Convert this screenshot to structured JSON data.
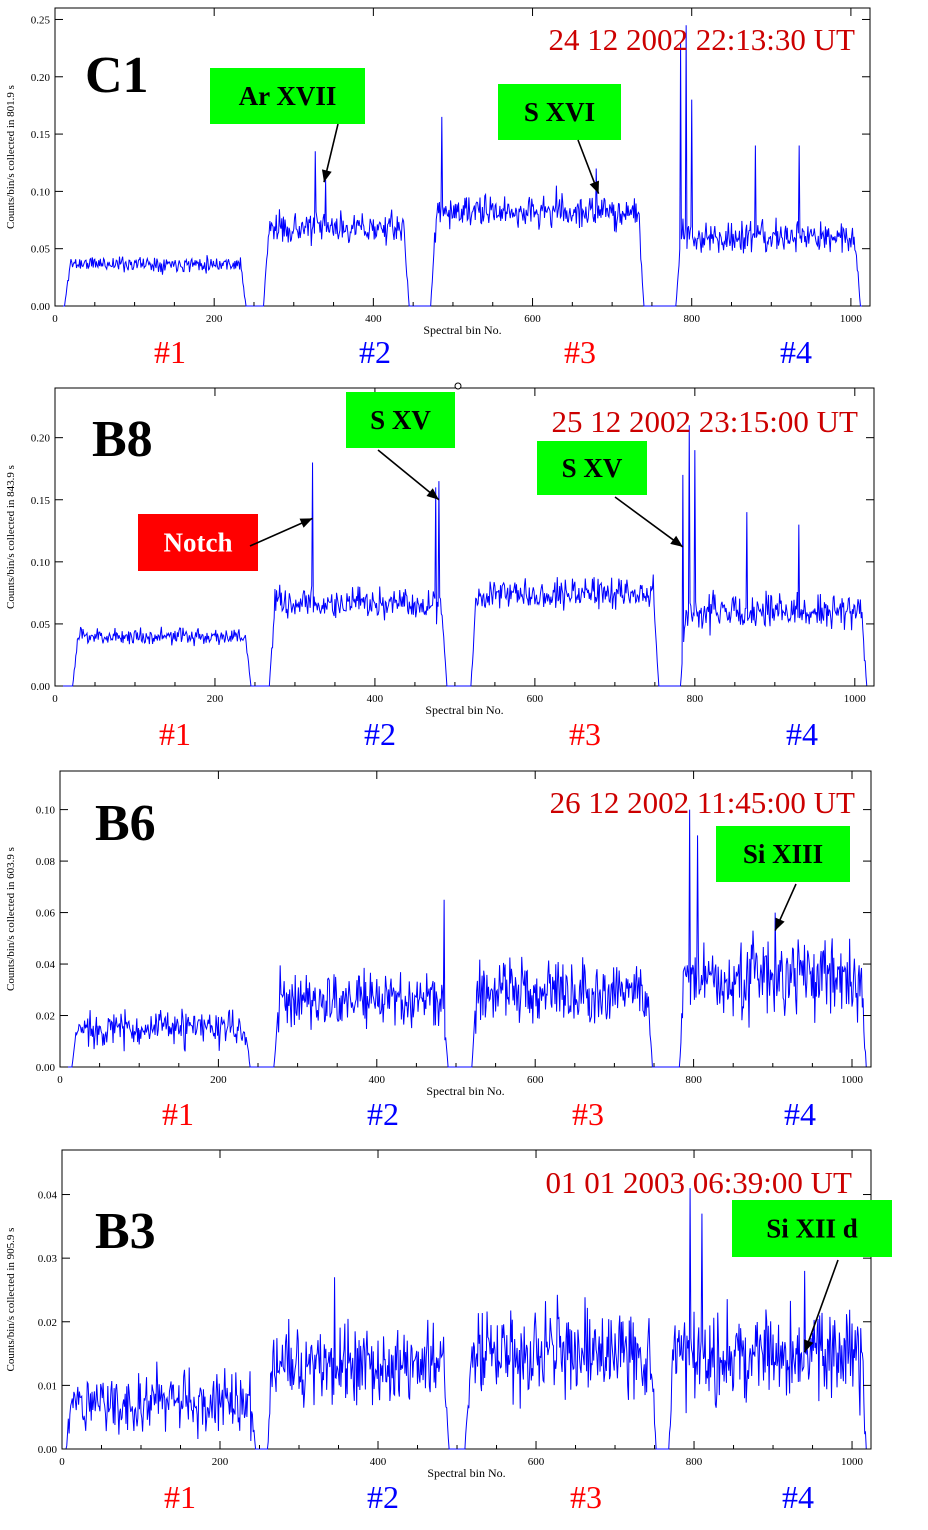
{
  "figure_colors": {
    "trace": "#0000ff",
    "axis": "#000000",
    "date": "#cc0000",
    "label_box_green": "#00ff00",
    "label_box_red": "#ff0000",
    "sector_odd": "#ff0000",
    "sector_even": "#0000ff"
  },
  "chart_data": [
    {
      "type": "line",
      "panel_label": "C1",
      "timestamp": "24 12 2002   22:13:30 UT",
      "xlabel": "Spectral bin No.",
      "ylabel": "Counts/bin/s collected in   801.9 s",
      "xlim": [
        0,
        1024
      ],
      "ylim": [
        0,
        0.26
      ],
      "xticks": [
        "0",
        "200",
        "400",
        "600",
        "800",
        "1000"
      ],
      "yticks": [
        "0.00",
        "0.05",
        "0.10",
        "0.15",
        "0.20",
        "0.25"
      ],
      "ytick_values": [
        0,
        0.05,
        0.1,
        0.15,
        0.2,
        0.25
      ],
      "sectors": [
        "#1",
        "#2",
        "#3",
        "#4"
      ],
      "noise_seed": 11,
      "segments": [
        {
          "x": [
            12,
            240
          ],
          "level": 0.037,
          "noise": 0.006
        },
        {
          "x": [
            262,
            445
          ],
          "level": 0.068,
          "noise": 0.011
        },
        {
          "x": [
            472,
            740
          ],
          "level": 0.082,
          "noise": 0.012
        },
        {
          "x": [
            780,
            1012
          ],
          "level": 0.06,
          "noise": 0.012
        }
      ],
      "peaks": [
        [
          327,
          0.135
        ],
        [
          340,
          0.11
        ],
        [
          486,
          0.165
        ],
        [
          630,
          0.105
        ],
        [
          680,
          0.12
        ],
        [
          786,
          0.23
        ],
        [
          793,
          0.245
        ],
        [
          800,
          0.18
        ],
        [
          880,
          0.14
        ],
        [
          935,
          0.14
        ]
      ],
      "annotations": [
        {
          "label": "Ar XVII",
          "color": "green",
          "target": [
            338,
            0.108
          ]
        },
        {
          "label": "S XVI",
          "color": "green",
          "target": [
            683,
            0.098
          ]
        }
      ]
    },
    {
      "type": "line",
      "panel_label": "B8",
      "timestamp": "25 12 2002   23:15:00 UT",
      "xlabel": "Spectral bin No.",
      "ylabel": "Counts/bin/s collected in   843.9 s",
      "xlim": [
        0,
        1024
      ],
      "ylim": [
        0,
        0.24
      ],
      "xticks": [
        "0",
        "200",
        "400",
        "600",
        "800",
        "1000"
      ],
      "yticks": [
        "0.00",
        "0.05",
        "0.10",
        "0.15",
        "0.20"
      ],
      "ytick_values": [
        0,
        0.05,
        0.1,
        0.15,
        0.2
      ],
      "sectors": [
        "#1",
        "#2",
        "#3",
        "#4"
      ],
      "noise_seed": 23,
      "segments": [
        {
          "x": [
            22,
            245
          ],
          "level": 0.04,
          "noise": 0.006
        },
        {
          "x": [
            268,
            490
          ],
          "level": 0.066,
          "noise": 0.011
        },
        {
          "x": [
            520,
            755
          ],
          "level": 0.075,
          "noise": 0.011
        },
        {
          "x": [
            782,
            1015
          ],
          "level": 0.06,
          "noise": 0.012
        }
      ],
      "peaks": [
        [
          322,
          0.18
        ],
        [
          476,
          0.16
        ],
        [
          480,
          0.165
        ],
        [
          785,
          0.17
        ],
        [
          793,
          0.21
        ],
        [
          800,
          0.19
        ],
        [
          865,
          0.14
        ],
        [
          930,
          0.13
        ]
      ],
      "annotations": [
        {
          "label": "S XV",
          "color": "green",
          "target": [
            480,
            0.15
          ]
        },
        {
          "label": "S XV",
          "color": "green",
          "target": [
            785,
            0.112
          ]
        },
        {
          "label": "Notch",
          "color": "red",
          "target": [
            322,
            0.135
          ]
        }
      ]
    },
    {
      "type": "line",
      "panel_label": "B6",
      "timestamp": "26 12 2002   11:45:00 UT",
      "xlabel": "Spectral bin No.",
      "ylabel": "Counts/bin/s collected in   603.9 s",
      "xlim": [
        0,
        1024
      ],
      "ylim": [
        0,
        0.115
      ],
      "xticks": [
        "0",
        "200",
        "400",
        "600",
        "800",
        "1000"
      ],
      "yticks": [
        "0.00",
        "0.02",
        "0.04",
        "0.06",
        "0.08",
        "0.10"
      ],
      "ytick_values": [
        0,
        0.02,
        0.04,
        0.06,
        0.08,
        0.1
      ],
      "sectors": [
        "#1",
        "#2",
        "#3",
        "#4"
      ],
      "noise_seed": 37,
      "segments": [
        {
          "x": [
            15,
            240
          ],
          "level": 0.015,
          "noise": 0.006
        },
        {
          "x": [
            270,
            490
          ],
          "level": 0.026,
          "noise": 0.01
        },
        {
          "x": [
            520,
            748
          ],
          "level": 0.03,
          "noise": 0.011
        },
        {
          "x": [
            782,
            1018
          ],
          "level": 0.035,
          "noise": 0.014
        }
      ],
      "peaks": [
        [
          485,
          0.065
        ],
        [
          795,
          0.1
        ],
        [
          805,
          0.09
        ],
        [
          903,
          0.06
        ]
      ],
      "annotations": [
        {
          "label": "Si XIII",
          "color": "green",
          "target": [
            903,
            0.053
          ]
        }
      ]
    },
    {
      "type": "line",
      "panel_label": "B3",
      "timestamp": "01 01 2003   06:39:00 UT",
      "xlabel": "Spectral bin No.",
      "ylabel": "Counts/bin/s collected in   905.9 s",
      "xlim": [
        0,
        1024
      ],
      "ylim": [
        0,
        0.047
      ],
      "xticks": [
        "0",
        "200",
        "400",
        "600",
        "800",
        "1000"
      ],
      "yticks": [
        "0.00",
        "0.01",
        "0.02",
        "0.03",
        "0.04"
      ],
      "ytick_values": [
        0,
        0.01,
        0.02,
        0.03,
        0.04
      ],
      "sectors": [
        "#1",
        "#2",
        "#3",
        "#4"
      ],
      "noise_seed": 51,
      "segments": [
        {
          "x": [
            5,
            245
          ],
          "level": 0.0075,
          "noise": 0.0042
        },
        {
          "x": [
            260,
            490
          ],
          "level": 0.013,
          "noise": 0.0055
        },
        {
          "x": [
            510,
            752
          ],
          "level": 0.015,
          "noise": 0.006
        },
        {
          "x": [
            768,
            1018
          ],
          "level": 0.015,
          "noise": 0.0065
        }
      ],
      "peaks": [
        [
          345,
          0.027
        ],
        [
          795,
          0.041
        ],
        [
          810,
          0.037
        ],
        [
          940,
          0.028
        ]
      ],
      "annotations": [
        {
          "label": "Si XII d",
          "color": "green",
          "target": [
            940,
            0.0152
          ]
        }
      ]
    }
  ]
}
